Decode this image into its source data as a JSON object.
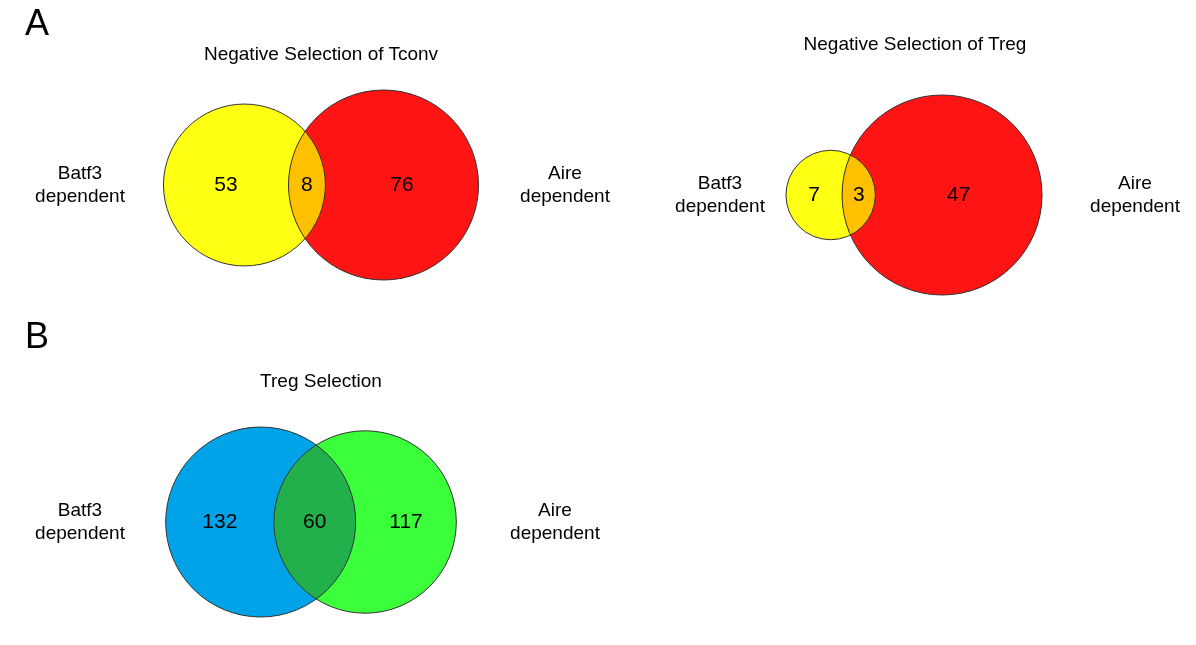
{
  "chart_data": [
    {
      "type": "other",
      "title": "Negative Selection of Tconv",
      "categories": [
        "Batf3 dependent",
        null,
        "Aire dependent"
      ],
      "values": [
        53,
        8,
        76
      ],
      "data_labels": true,
      "colors": [
        "#ffff14",
        "#ffc000",
        "#ff1414"
      ],
      "annotations": [
        "A"
      ]
    },
    {
      "type": "other",
      "title": "Negative Selection of Treg",
      "categories": [
        "Batf3 dependent",
        null,
        "Aire dependent"
      ],
      "values": [
        7,
        3,
        47
      ],
      "data_labels": true,
      "colors": [
        "#ffff14",
        "#ffc000",
        "#ff1414"
      ]
    },
    {
      "type": "other",
      "title": "Treg Selection",
      "categories": [
        "Batf3 dependent",
        null,
        "Aire dependent"
      ],
      "values": [
        132,
        60,
        117
      ],
      "data_labels": true,
      "colors": [
        "#00a2e8",
        "#22b04c",
        "#3cff3c"
      ],
      "annotations": [
        "B"
      ]
    }
  ]
}
